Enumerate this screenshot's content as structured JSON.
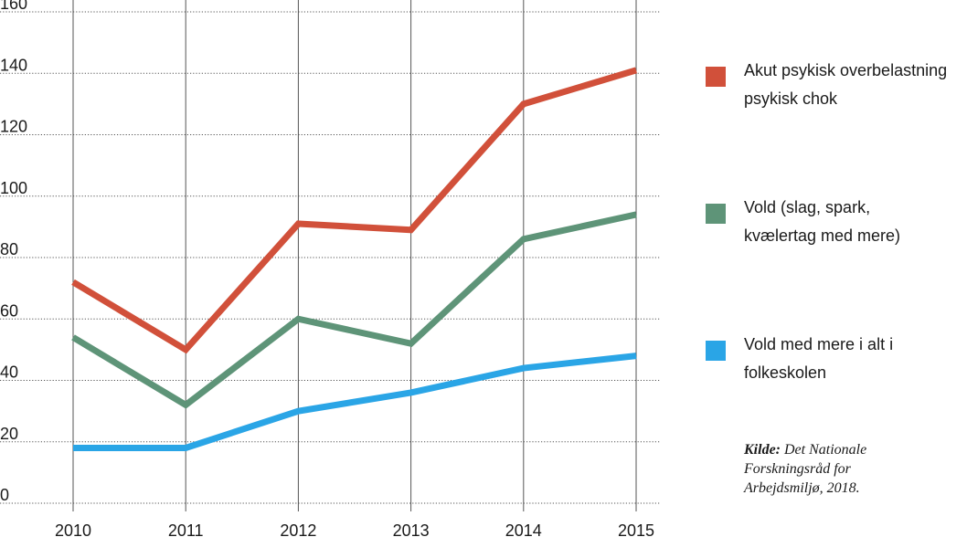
{
  "chart_data": {
    "type": "line",
    "title": "",
    "xlabel": "",
    "ylabel": "",
    "x": [
      "2010",
      "2011",
      "2012",
      "2013",
      "2014",
      "2015"
    ],
    "ylim": [
      0,
      160
    ],
    "yticks": [
      0,
      20,
      40,
      60,
      80,
      100,
      120,
      140,
      160
    ],
    "grid": "on",
    "legend_placement": "right",
    "series": [
      {
        "name_lines": [
          "Akut psykisk overbelastning",
          "psykisk chok"
        ],
        "color": "#d1503a",
        "values": [
          72,
          50,
          91,
          89,
          130,
          141
        ]
      },
      {
        "name_lines": [
          "Vold (slag, spark,",
          "kvælertag med mere)"
        ],
        "color": "#5e9478",
        "values": [
          54,
          32,
          60,
          52,
          86,
          94
        ]
      },
      {
        "name_lines": [
          "Vold med mere i alt i",
          "folkeskolen"
        ],
        "color": "#2aa5e6",
        "values": [
          18,
          18,
          30,
          36,
          44,
          48
        ]
      }
    ]
  },
  "source": {
    "label": "Kilde:",
    "lines": [
      " Det Nationale",
      "Forskningsråd for",
      "Arbejdsmiljø, 2018."
    ]
  }
}
